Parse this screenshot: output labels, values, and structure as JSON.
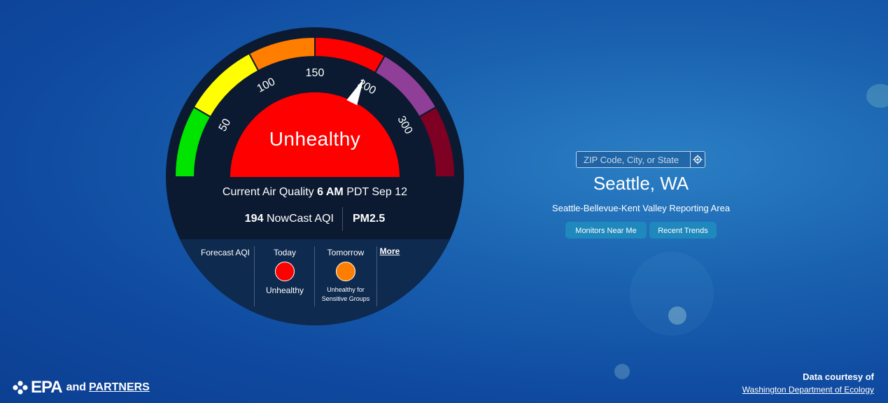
{
  "gauge": {
    "ticks": [
      "50",
      "100",
      "150",
      "200",
      "300"
    ],
    "category": "Unhealthy",
    "category_color": "#ff0000",
    "aqi_value": 194,
    "colors": {
      "good": "#00e400",
      "moderate": "#ffff00",
      "usg": "#ff7e00",
      "unhealthy": "#ff0000",
      "very_unhealthy": "#8f3f97",
      "hazardous": "#7e0023"
    }
  },
  "current": {
    "prefix": "Current Air Quality",
    "time": "6 AM",
    "suffix": "PDT Sep 12",
    "aqi_number": "194",
    "aqi_label": "NowCast AQI",
    "pollutant": "PM2.5"
  },
  "forecast": {
    "label": "Forecast AQI",
    "today": {
      "day": "Today",
      "category": "Unhealthy",
      "color": "#ff0000"
    },
    "tomorrow": {
      "day": "Tomorrow",
      "category": "Unhealthy for Sensitive Groups",
      "color": "#ff7e00"
    },
    "more": "More"
  },
  "search": {
    "placeholder": "ZIP Code, City, or State",
    "icon": "locate-icon"
  },
  "location": {
    "city": "Seattle, WA",
    "area": "Seattle-Bellevue-Kent Valley Reporting Area"
  },
  "buttons": {
    "monitors": "Monitors Near Me",
    "trends": "Recent Trends"
  },
  "footer": {
    "brand": "EPA",
    "and": "and",
    "partners": "PARTNERS",
    "credit_label": "Data courtesy of",
    "credit_source": "Washington Department of Ecology"
  }
}
